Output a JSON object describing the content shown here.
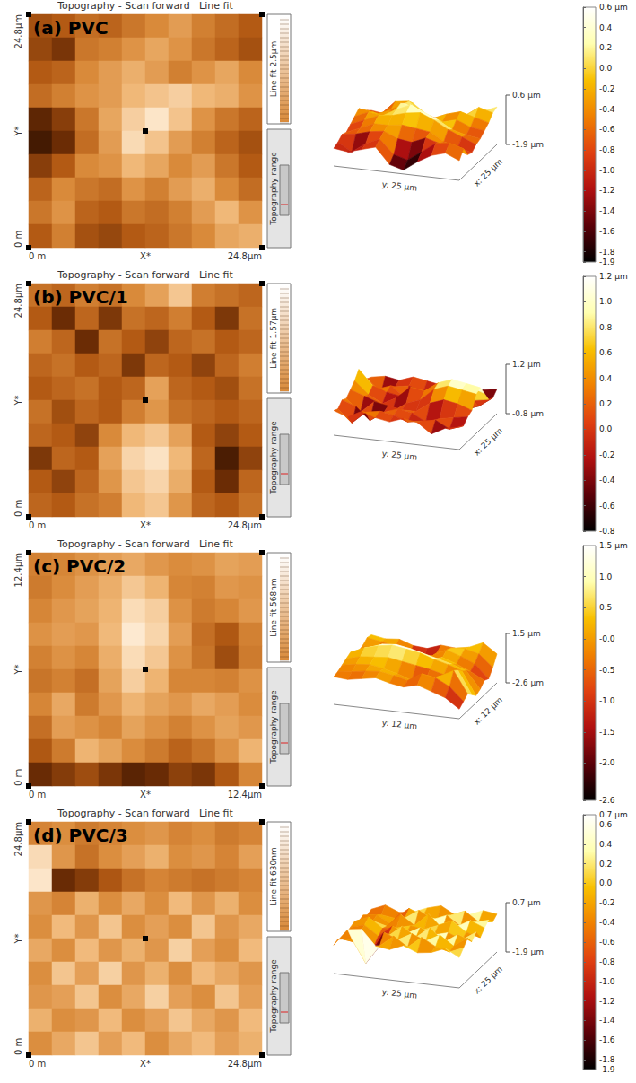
{
  "chart_data": [
    {
      "type": "heatmap",
      "title": "(a) PVC",
      "header": "Topography - Scan forward   Line fit",
      "xlabels": [
        "0 m",
        "X*",
        "24.8µm"
      ],
      "ylabels": [
        "0 m",
        "Y*",
        "24.8µm"
      ],
      "side_labels": [
        "Line fit 2.5µm",
        "Topography range"
      ],
      "surface_labels": {
        "y": "y: 25 µm",
        "x": "x: 25 µm"
      },
      "zticks": [
        {
          "value": 0.6,
          "label": "0.6 µm"
        },
        {
          "value": -1.9,
          "label": "-1.9 µm"
        }
      ],
      "clim": [
        -1.9,
        0.6
      ],
      "cticks": [
        {
          "value": 0.6,
          "label": "0.6 µm"
        },
        0.4,
        0.2,
        {
          "value": 0,
          "label": "0.0"
        },
        -0.2,
        -0.4,
        -0.6,
        -0.8,
        {
          "value": -1,
          "label": "-1.0"
        },
        -1.2,
        -1.4,
        -1.6,
        -1.8,
        -1.9
      ],
      "cells": [
        [
          -1.0,
          -0.9,
          -0.7,
          -0.8,
          -0.6,
          -0.4,
          -0.2,
          -0.5,
          -0.7,
          -0.9
        ],
        [
          -1.1,
          -1.3,
          -0.6,
          -0.5,
          -0.3,
          -0.1,
          -0.3,
          -0.6,
          -0.8,
          -1.0
        ],
        [
          -0.9,
          -0.8,
          -0.4,
          -0.2,
          0.0,
          -0.2,
          -0.5,
          -0.3,
          -0.1,
          -0.4
        ],
        [
          -0.7,
          -0.5,
          -0.3,
          -0.2,
          0.1,
          0.2,
          0.3,
          0.1,
          0.0,
          -0.3
        ],
        [
          -1.5,
          -1.2,
          -0.6,
          -0.1,
          0.3,
          0.5,
          0.2,
          -0.3,
          -0.6,
          -0.8
        ],
        [
          -1.7,
          -1.4,
          -0.7,
          -0.2,
          0.4,
          0.2,
          -0.2,
          -0.5,
          -0.8,
          -1.0
        ],
        [
          -1.2,
          -0.9,
          -0.4,
          -0.3,
          0.1,
          -0.1,
          -0.4,
          -0.2,
          -0.6,
          -0.9
        ],
        [
          -0.8,
          -0.4,
          -0.6,
          -0.7,
          -0.3,
          -0.5,
          -0.2,
          0.0,
          -0.4,
          -0.7
        ],
        [
          -0.6,
          -0.3,
          -0.8,
          -0.9,
          -0.6,
          -0.7,
          -0.5,
          -0.2,
          0.1,
          -0.3
        ],
        [
          -0.9,
          -0.5,
          -1.0,
          -1.1,
          -0.9,
          -0.8,
          -0.6,
          -0.4,
          -0.1,
          0.0
        ]
      ]
    },
    {
      "type": "heatmap",
      "title": "(b) PVC/1",
      "header": "Topography - Scan forward   Line fit",
      "xlabels": [
        "0 m",
        "X*",
        "24.8µm"
      ],
      "ylabels": [
        "0 m",
        "Y*",
        "24.8µm"
      ],
      "side_labels": [
        "Line fit 1.57µm",
        "Topography range"
      ],
      "surface_labels": {
        "y": "y: 25 µm",
        "x": "x: 25 µm"
      },
      "zticks": [
        {
          "value": 1.2,
          "label": "1.2 µm"
        },
        {
          "value": -0.8,
          "label": "-0.8 µm"
        }
      ],
      "clim": [
        -0.8,
        1.2
      ],
      "cticks": [
        {
          "value": 1.2,
          "label": "1.2 µm"
        },
        {
          "value": 1,
          "label": "1.0"
        },
        0.8,
        0.6,
        0.4,
        0.2,
        {
          "value": 0,
          "label": "0.0"
        },
        -0.2,
        -0.4,
        -0.6,
        -0.8
      ],
      "cells": [
        [
          0.2,
          0.1,
          0.3,
          0.2,
          0.4,
          0.6,
          0.9,
          0.3,
          0.2,
          0.1
        ],
        [
          0.0,
          -0.4,
          0.1,
          -0.3,
          0.2,
          0.1,
          0.3,
          0.0,
          -0.3,
          0.2
        ],
        [
          0.3,
          0.1,
          -0.4,
          0.2,
          0.0,
          -0.2,
          0.1,
          0.2,
          0.0,
          0.1
        ],
        [
          0.1,
          0.2,
          0.0,
          0.1,
          -0.3,
          0.1,
          0.0,
          -0.2,
          0.1,
          0.3
        ],
        [
          0.0,
          0.1,
          0.2,
          0.0,
          0.1,
          0.6,
          0.1,
          0.0,
          -0.1,
          0.2
        ],
        [
          0.2,
          -0.1,
          0.1,
          0.0,
          0.3,
          0.5,
          0.2,
          0.1,
          0.0,
          0.1
        ],
        [
          0.1,
          0.0,
          -0.2,
          0.4,
          0.8,
          0.9,
          0.6,
          0.0,
          -0.2,
          0.0
        ],
        [
          -0.3,
          0.1,
          0.0,
          0.6,
          1.0,
          1.1,
          0.8,
          0.1,
          -0.6,
          -0.2
        ],
        [
          0.0,
          -0.2,
          0.1,
          0.5,
          0.9,
          1.0,
          0.7,
          0.0,
          -0.4,
          0.1
        ],
        [
          0.1,
          0.0,
          0.2,
          0.3,
          0.8,
          0.9,
          0.5,
          0.1,
          0.0,
          0.2
        ]
      ]
    },
    {
      "type": "heatmap",
      "title": "(c) PVC/2",
      "header": "Topography - Scan forward   Line fit",
      "xlabels": [
        "0 m",
        "X*",
        "12.4µm"
      ],
      "ylabels": [
        "0 m",
        "Y*",
        "12.4µm"
      ],
      "side_labels": [
        "Line fit 568nm",
        "Topography range"
      ],
      "surface_labels": {
        "y": "y: 12 µm",
        "x": "x: 12 µm"
      },
      "zticks": [
        {
          "value": 1.5,
          "label": "1.5 µm"
        },
        {
          "value": -2.6,
          "label": "-2.6 µm"
        }
      ],
      "clim": [
        -2.6,
        1.5
      ],
      "cticks": [
        {
          "value": 1.5,
          "label": "1.5 µm"
        },
        {
          "value": 1,
          "label": "1.0"
        },
        0.5,
        {
          "value": 0,
          "label": "-0.0"
        },
        -0.5,
        {
          "value": -1,
          "label": "-1.0"
        },
        -1.5,
        {
          "value": -2,
          "label": "-2.0"
        },
        -2.6
      ],
      "cells": [
        [
          -0.3,
          -0.2,
          0.0,
          0.2,
          0.4,
          0.1,
          -0.1,
          0.0,
          0.3,
          0.2
        ],
        [
          -0.4,
          -0.1,
          0.2,
          0.5,
          0.9,
          0.6,
          -0.2,
          -0.3,
          0.1,
          0.0
        ],
        [
          -0.2,
          0.1,
          0.3,
          0.6,
          1.2,
          1.0,
          0.0,
          -0.4,
          -0.2,
          0.1
        ],
        [
          0.0,
          0.2,
          0.1,
          0.7,
          1.4,
          1.1,
          0.2,
          -0.6,
          -1.0,
          -0.3
        ],
        [
          -0.3,
          0.0,
          -0.2,
          0.5,
          1.2,
          0.9,
          0.0,
          -0.5,
          -1.2,
          -0.4
        ],
        [
          -0.5,
          -0.3,
          -0.6,
          0.3,
          1.0,
          0.6,
          -0.2,
          -0.2,
          -0.3,
          0.0
        ],
        [
          -0.2,
          0.4,
          -0.4,
          0.1,
          0.6,
          0.3,
          0.1,
          0.4,
          0.2,
          -0.1
        ],
        [
          -0.6,
          0.2,
          0.0,
          -0.2,
          0.3,
          0.0,
          -0.3,
          0.0,
          0.3,
          0.1
        ],
        [
          -1.0,
          -0.4,
          0.6,
          0.3,
          -0.1,
          -0.4,
          -0.8,
          -0.5,
          0.0,
          0.6
        ],
        [
          -1.8,
          -1.5,
          -1.2,
          -1.6,
          -2.0,
          -1.8,
          -1.4,
          -1.6,
          -1.0,
          -0.2
        ]
      ]
    },
    {
      "type": "heatmap",
      "title": "(d) PVC/3",
      "header": "Topography - Scan forward   Line fit",
      "xlabels": [
        "0 m",
        "X*",
        "24.8µm"
      ],
      "ylabels": [
        "0 m",
        "Y*",
        "24.8µm"
      ],
      "side_labels": [
        "Line fit 630nm",
        "Topography range"
      ],
      "surface_labels": {
        "y": "y: 25 µm",
        "x": "x: 25 µm"
      },
      "zticks": [
        {
          "value": 0.7,
          "label": "0.7 µm"
        },
        {
          "value": -1.9,
          "label": "-1.9 µm"
        }
      ],
      "clim": [
        -1.9,
        0.7
      ],
      "cticks": [
        {
          "value": 0.7,
          "label": "0.7 µm"
        },
        0.6,
        0.4,
        0.2,
        {
          "value": 0,
          "label": "0.0"
        },
        -0.2,
        -0.4,
        -0.6,
        -0.8,
        {
          "value": -1,
          "label": "-1.0"
        },
        -1.2,
        -1.4,
        -1.6,
        -1.8,
        -1.9
      ],
      "cells": [
        [
          -0.4,
          -0.3,
          -0.5,
          -0.4,
          -0.3,
          -0.2,
          -0.4,
          -0.3,
          -0.5,
          -0.4
        ],
        [
          0.5,
          -0.2,
          -0.6,
          -0.3,
          -0.1,
          0.1,
          -0.3,
          -0.2,
          -0.4,
          -0.1
        ],
        [
          0.6,
          -1.4,
          -1.2,
          -0.9,
          -0.6,
          -0.4,
          -0.5,
          -0.6,
          -0.5,
          -0.4
        ],
        [
          -0.2,
          -0.4,
          0.1,
          -0.3,
          0.0,
          -0.3,
          0.2,
          -0.2,
          0.1,
          -0.3
        ],
        [
          -0.3,
          0.2,
          -0.2,
          0.3,
          -0.3,
          -0.1,
          -0.3,
          0.3,
          -0.2,
          0.0
        ],
        [
          0.0,
          -0.3,
          0.2,
          -0.2,
          0.1,
          -0.2,
          0.4,
          -0.1,
          -0.3,
          0.2
        ],
        [
          -0.3,
          0.3,
          -0.1,
          0.4,
          -0.2,
          0.1,
          -0.3,
          0.2,
          0.0,
          -0.2
        ],
        [
          -0.2,
          -0.1,
          0.3,
          -0.3,
          0.0,
          0.4,
          -0.1,
          -0.3,
          0.3,
          -0.1
        ],
        [
          0.1,
          -0.3,
          -0.2,
          0.2,
          -0.3,
          -0.1,
          0.3,
          0.0,
          -0.2,
          0.2
        ],
        [
          -0.3,
          0.0,
          0.3,
          -0.1,
          0.2,
          -0.3,
          0.0,
          0.2,
          -0.1,
          0.1
        ]
      ]
    }
  ]
}
